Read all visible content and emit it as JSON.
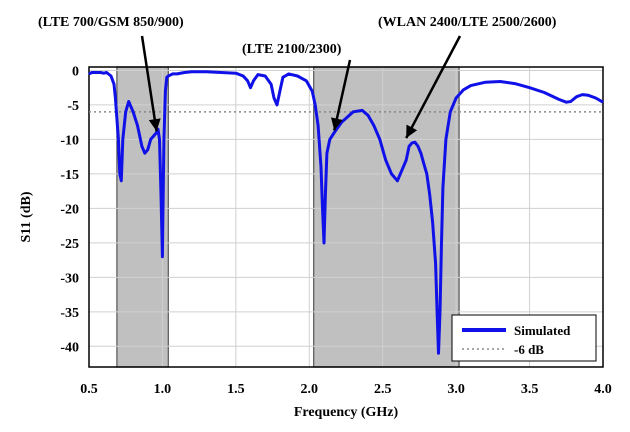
{
  "chart_data": {
    "type": "line",
    "xlabel": "Frequency (GHz)",
    "ylabel": "S11 (dB)",
    "xlim": [
      0.5,
      4.0
    ],
    "ylim": [
      -43,
      0.5
    ],
    "xticks": [
      "0.5",
      "1.0",
      "1.5",
      "2.0",
      "2.5",
      "3.0",
      "3.5",
      "4.0"
    ],
    "yticks": [
      "0",
      "-5",
      "-10",
      "-15",
      "-20",
      "-25",
      "-30",
      "-35",
      "-40"
    ],
    "grid": true,
    "legend_position": "bottom-right",
    "bands": [
      {
        "x0": 0.69,
        "x1": 1.04,
        "color": "#c0c0c0"
      },
      {
        "x0": 2.03,
        "x1": 3.02,
        "color": "#c0c0c0"
      }
    ],
    "threshold": {
      "name": "-6 dB",
      "value": -6,
      "color": "#888888"
    },
    "series": [
      {
        "name": "Simulated",
        "color": "#1010e8",
        "x": [
          0.5,
          0.52,
          0.55,
          0.58,
          0.6,
          0.62,
          0.65,
          0.67,
          0.68,
          0.69,
          0.7,
          0.71,
          0.72,
          0.73,
          0.75,
          0.77,
          0.8,
          0.83,
          0.86,
          0.88,
          0.9,
          0.92,
          0.94,
          0.96,
          0.97,
          0.98,
          0.99,
          1.0,
          1.01,
          1.02,
          1.03,
          1.04,
          1.05,
          1.07,
          1.1,
          1.15,
          1.2,
          1.3,
          1.4,
          1.5,
          1.55,
          1.58,
          1.6,
          1.62,
          1.65,
          1.7,
          1.74,
          1.76,
          1.78,
          1.8,
          1.82,
          1.86,
          1.92,
          1.98,
          2.02,
          2.04,
          2.06,
          2.08,
          2.09,
          2.1,
          2.11,
          2.12,
          2.14,
          2.17,
          2.22,
          2.3,
          2.36,
          2.4,
          2.44,
          2.48,
          2.52,
          2.56,
          2.6,
          2.63,
          2.66,
          2.68,
          2.7,
          2.72,
          2.74,
          2.76,
          2.78,
          2.8,
          2.82,
          2.84,
          2.86,
          2.87,
          2.88,
          2.89,
          2.9,
          2.91,
          2.93,
          2.96,
          3.0,
          3.05,
          3.1,
          3.2,
          3.3,
          3.4,
          3.5,
          3.6,
          3.7,
          3.75,
          3.78,
          3.82,
          3.86,
          3.9,
          3.95,
          4.0
        ],
        "y": [
          -0.5,
          -0.3,
          -0.3,
          -0.3,
          -0.4,
          -0.3,
          -0.8,
          -2,
          -4,
          -7,
          -10,
          -15,
          -16,
          -10,
          -6,
          -4.5,
          -6,
          -8,
          -11,
          -12,
          -11.5,
          -10,
          -9.5,
          -9,
          -8.5,
          -10,
          -18,
          -27,
          -10,
          -3,
          -1,
          -0.8,
          -0.7,
          -0.5,
          -0.5,
          -0.3,
          -0.2,
          -0.2,
          -0.3,
          -0.4,
          -0.8,
          -1.5,
          -2.5,
          -1.5,
          -0.6,
          -0.8,
          -2,
          -4,
          -5,
          -3,
          -1,
          -0.5,
          -0.8,
          -1.5,
          -3,
          -5,
          -8,
          -14,
          -20,
          -25,
          -18,
          -12,
          -10,
          -9,
          -7.5,
          -6,
          -5.8,
          -6.5,
          -8,
          -10,
          -13,
          -15,
          -16,
          -14.5,
          -13,
          -11,
          -10.5,
          -10.4,
          -11,
          -12,
          -13.5,
          -15,
          -18,
          -22,
          -28,
          -35,
          -41,
          -35,
          -25,
          -17,
          -10,
          -6,
          -4,
          -2.8,
          -2.2,
          -1.7,
          -1.6,
          -1.9,
          -2.5,
          -3.2,
          -4.2,
          -4.6,
          -4.5,
          -3.8,
          -3.5,
          -3.6,
          -4.0,
          -4.6
        ]
      }
    ],
    "annotations": [
      {
        "text": "(LTE 700/GSM 850/900)",
        "point_x": 0.96,
        "point_y": -8.8
      },
      {
        "text": "(LTE 2100/2300)",
        "point_x": 2.17,
        "point_y": -8.7
      },
      {
        "text": "(WLAN 2400/LTE 2500/2600)",
        "point_x": 2.66,
        "point_y": -9.8
      }
    ]
  }
}
